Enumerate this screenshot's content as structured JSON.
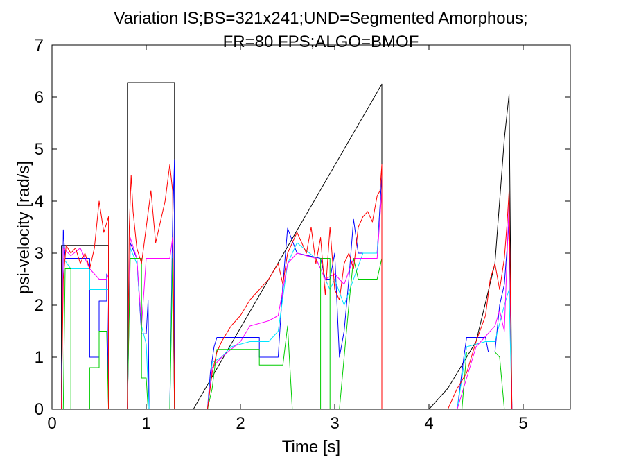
{
  "chart_data": {
    "type": "line",
    "title_line1": "Variation IS;BS=321x241;UND=Segmented Amorphous;",
    "title_line2": "FR=80 FPS;ALGO=BMOF",
    "xlabel": "Time [s]",
    "ylabel": "psi-velocity [rad/s]",
    "xlim": [
      0,
      5.5
    ],
    "ylim": [
      0,
      7
    ],
    "xticks": [
      0,
      1,
      2,
      3,
      4,
      5
    ],
    "yticks": [
      0,
      1,
      2,
      3,
      4,
      5,
      6,
      7
    ],
    "grid": false,
    "series": [
      {
        "color": "#000000",
        "points": [
          [
            0,
            0
          ],
          [
            0.1,
            0
          ],
          [
            0.1,
            3.15
          ],
          [
            0.6,
            3.15
          ],
          [
            0.6,
            0
          ],
          [
            0.8,
            0
          ],
          [
            0.8,
            6.28
          ],
          [
            1.3,
            6.28
          ],
          [
            1.3,
            0
          ],
          [
            1.5,
            0
          ],
          [
            3.5,
            6.25
          ],
          [
            3.5,
            0
          ],
          [
            4.0,
            0
          ],
          [
            4.2,
            0.4
          ],
          [
            4.5,
            1.3
          ],
          [
            4.7,
            2.8
          ],
          [
            4.8,
            5.2
          ],
          [
            4.85,
            6.05
          ],
          [
            4.88,
            0
          ],
          [
            5.5,
            0
          ]
        ]
      },
      {
        "color": "#0000ff",
        "points": [
          [
            0,
            0
          ],
          [
            0.1,
            0
          ],
          [
            0.12,
            3.45
          ],
          [
            0.14,
            2.9
          ],
          [
            0.4,
            2.9
          ],
          [
            0.4,
            1.0
          ],
          [
            0.5,
            1.0
          ],
          [
            0.5,
            2.08
          ],
          [
            0.58,
            2.08
          ],
          [
            0.58,
            2.6
          ],
          [
            0.6,
            0
          ],
          [
            0.8,
            0
          ],
          [
            0.83,
            3.2
          ],
          [
            0.9,
            2.9
          ],
          [
            0.95,
            1.45
          ],
          [
            1.0,
            1.45
          ],
          [
            1.02,
            2.1
          ],
          [
            1.03,
            0
          ],
          [
            1.25,
            0
          ],
          [
            1.28,
            3.6
          ],
          [
            1.3,
            4.8
          ],
          [
            1.3,
            0
          ],
          [
            1.65,
            0
          ],
          [
            1.68,
            0.7
          ],
          [
            1.72,
            1.2
          ],
          [
            1.75,
            1.38
          ],
          [
            2.2,
            1.38
          ],
          [
            2.2,
            1.0
          ],
          [
            2.4,
            1.0
          ],
          [
            2.45,
            2.4
          ],
          [
            2.5,
            3.48
          ],
          [
            2.6,
            3.0
          ],
          [
            2.85,
            2.9
          ],
          [
            2.9,
            2.5
          ],
          [
            2.95,
            2.5
          ],
          [
            3.0,
            3.0
          ],
          [
            3.05,
            1.0
          ],
          [
            3.1,
            1.5
          ],
          [
            3.15,
            2.5
          ],
          [
            3.2,
            3.65
          ],
          [
            3.25,
            3.0
          ],
          [
            3.45,
            3.0
          ],
          [
            3.5,
            4.5
          ],
          [
            3.5,
            0
          ],
          [
            4.3,
            0
          ],
          [
            4.37,
            1.0
          ],
          [
            4.4,
            1.38
          ],
          [
            4.6,
            1.38
          ],
          [
            4.63,
            1.1
          ],
          [
            4.7,
            1.1
          ],
          [
            4.75,
            2.0
          ],
          [
            4.8,
            2.4
          ],
          [
            4.85,
            3.6
          ],
          [
            4.88,
            0
          ],
          [
            5.5,
            0
          ]
        ]
      },
      {
        "color": "#00e5ff",
        "points": [
          [
            0,
            0
          ],
          [
            0.1,
            0
          ],
          [
            0.12,
            2.9
          ],
          [
            0.2,
            2.7
          ],
          [
            0.4,
            2.7
          ],
          [
            0.4,
            2.3
          ],
          [
            0.6,
            2.3
          ],
          [
            0.6,
            0
          ],
          [
            0.8,
            0
          ],
          [
            0.83,
            3.1
          ],
          [
            0.9,
            2.8
          ],
          [
            0.95,
            1.6
          ],
          [
            1.0,
            1.25
          ],
          [
            1.03,
            0
          ],
          [
            1.25,
            0
          ],
          [
            1.28,
            3.0
          ],
          [
            1.3,
            0
          ],
          [
            1.65,
            0
          ],
          [
            1.7,
            0.9
          ],
          [
            1.8,
            1.0
          ],
          [
            1.9,
            1.2
          ],
          [
            2.1,
            1.3
          ],
          [
            2.3,
            1.3
          ],
          [
            2.4,
            1.5
          ],
          [
            2.5,
            2.8
          ],
          [
            2.6,
            3.2
          ],
          [
            2.8,
            2.9
          ],
          [
            2.95,
            2.3
          ],
          [
            3.0,
            2.5
          ],
          [
            3.1,
            2.0
          ],
          [
            3.2,
            2.5
          ],
          [
            3.3,
            3.0
          ],
          [
            3.45,
            3.0
          ],
          [
            3.5,
            4.2
          ],
          [
            3.5,
            0
          ],
          [
            4.3,
            0
          ],
          [
            4.4,
            1.2
          ],
          [
            4.6,
            1.3
          ],
          [
            4.7,
            1.3
          ],
          [
            4.8,
            2.0
          ],
          [
            4.85,
            2.3
          ],
          [
            4.88,
            0
          ],
          [
            5.5,
            0
          ]
        ]
      },
      {
        "color": "#ff00ff",
        "points": [
          [
            0,
            0
          ],
          [
            0.1,
            0
          ],
          [
            0.12,
            3.1
          ],
          [
            0.2,
            2.95
          ],
          [
            0.3,
            3.1
          ],
          [
            0.4,
            2.7
          ],
          [
            0.5,
            2.5
          ],
          [
            0.58,
            2.5
          ],
          [
            0.6,
            2.6
          ],
          [
            0.6,
            0
          ],
          [
            0.8,
            0
          ],
          [
            0.83,
            3.3
          ],
          [
            0.9,
            2.9
          ],
          [
            0.95,
            1.6
          ],
          [
            1.0,
            2.9
          ],
          [
            1.25,
            2.9
          ],
          [
            1.28,
            3.3
          ],
          [
            1.3,
            0
          ],
          [
            1.65,
            0
          ],
          [
            1.7,
            0.8
          ],
          [
            1.8,
            1.0
          ],
          [
            2.0,
            1.3
          ],
          [
            2.1,
            1.6
          ],
          [
            2.3,
            1.7
          ],
          [
            2.4,
            1.8
          ],
          [
            2.5,
            2.8
          ],
          [
            2.6,
            3.0
          ],
          [
            2.8,
            2.9
          ],
          [
            2.9,
            2.5
          ],
          [
            3.0,
            2.6
          ],
          [
            3.1,
            2.4
          ],
          [
            3.2,
            2.9
          ],
          [
            3.45,
            2.9
          ],
          [
            3.5,
            4.2
          ],
          [
            3.5,
            0
          ],
          [
            4.3,
            0
          ],
          [
            4.4,
            0.6
          ],
          [
            4.5,
            1.2
          ],
          [
            4.6,
            1.4
          ],
          [
            4.7,
            1.6
          ],
          [
            4.75,
            1.9
          ],
          [
            4.8,
            1.5
          ],
          [
            4.85,
            4.0
          ],
          [
            4.88,
            0
          ],
          [
            5.5,
            0
          ]
        ]
      },
      {
        "color": "#00cc00",
        "points": [
          [
            0,
            0
          ],
          [
            0.12,
            0
          ],
          [
            0.14,
            2.7
          ],
          [
            0.2,
            2.7
          ],
          [
            0.2,
            0
          ],
          [
            0.4,
            0
          ],
          [
            0.4,
            0.8
          ],
          [
            0.5,
            0.8
          ],
          [
            0.5,
            1.5
          ],
          [
            0.58,
            1.5
          ],
          [
            0.6,
            0
          ],
          [
            0.8,
            0
          ],
          [
            0.83,
            2.9
          ],
          [
            0.95,
            2.9
          ],
          [
            0.95,
            0.6
          ],
          [
            1.0,
            0.6
          ],
          [
            1.02,
            0
          ],
          [
            1.25,
            0
          ],
          [
            1.28,
            2.9
          ],
          [
            1.3,
            0
          ],
          [
            1.65,
            0
          ],
          [
            1.7,
            0.4
          ],
          [
            1.75,
            1.15
          ],
          [
            2.2,
            1.15
          ],
          [
            2.2,
            0.85
          ],
          [
            2.45,
            0.85
          ],
          [
            2.5,
            1.6
          ],
          [
            2.55,
            0
          ],
          [
            2.85,
            0
          ],
          [
            2.85,
            2.9
          ],
          [
            2.95,
            2.9
          ],
          [
            2.95,
            0
          ],
          [
            3.05,
            0
          ],
          [
            3.15,
            2.0
          ],
          [
            3.2,
            2.9
          ],
          [
            3.25,
            2.5
          ],
          [
            3.45,
            2.5
          ],
          [
            3.5,
            2.9
          ],
          [
            3.5,
            0
          ],
          [
            4.35,
            0
          ],
          [
            4.4,
            1.1
          ],
          [
            4.6,
            1.1
          ],
          [
            4.7,
            1.1
          ],
          [
            4.75,
            1.0
          ],
          [
            4.8,
            0
          ],
          [
            5.5,
            0
          ]
        ]
      },
      {
        "color": "#ff0000",
        "points": [
          [
            0,
            0
          ],
          [
            0.1,
            0
          ],
          [
            0.12,
            2.5
          ],
          [
            0.15,
            3.15
          ],
          [
            0.2,
            3.0
          ],
          [
            0.25,
            3.1
          ],
          [
            0.3,
            2.8
          ],
          [
            0.35,
            3.0
          ],
          [
            0.4,
            2.7
          ],
          [
            0.45,
            3.1
          ],
          [
            0.5,
            4.0
          ],
          [
            0.55,
            3.4
          ],
          [
            0.6,
            3.7
          ],
          [
            0.6,
            0
          ],
          [
            0.8,
            0
          ],
          [
            0.82,
            3.5
          ],
          [
            0.84,
            4.5
          ],
          [
            0.86,
            3.8
          ],
          [
            0.9,
            3.1
          ],
          [
            0.95,
            2.8
          ],
          [
            1.0,
            3.5
          ],
          [
            1.05,
            4.2
          ],
          [
            1.1,
            3.2
          ],
          [
            1.15,
            3.6
          ],
          [
            1.2,
            4.0
          ],
          [
            1.25,
            4.7
          ],
          [
            1.28,
            4.2
          ],
          [
            1.3,
            0
          ],
          [
            1.65,
            0
          ],
          [
            1.7,
            0.7
          ],
          [
            1.75,
            1.1
          ],
          [
            1.8,
            1.3
          ],
          [
            1.9,
            1.6
          ],
          [
            2.0,
            1.8
          ],
          [
            2.1,
            2.1
          ],
          [
            2.2,
            2.3
          ],
          [
            2.3,
            2.5
          ],
          [
            2.4,
            2.8
          ],
          [
            2.45,
            2.4
          ],
          [
            2.5,
            3.0
          ],
          [
            2.55,
            3.2
          ],
          [
            2.6,
            3.4
          ],
          [
            2.7,
            3.0
          ],
          [
            2.75,
            3.5
          ],
          [
            2.8,
            2.8
          ],
          [
            2.85,
            3.3
          ],
          [
            2.9,
            2.2
          ],
          [
            2.95,
            3.5
          ],
          [
            3.0,
            2.3
          ],
          [
            3.05,
            2.1
          ],
          [
            3.1,
            2.8
          ],
          [
            3.15,
            3.0
          ],
          [
            3.2,
            2.7
          ],
          [
            3.25,
            3.5
          ],
          [
            3.3,
            3.7
          ],
          [
            3.35,
            3.8
          ],
          [
            3.4,
            3.6
          ],
          [
            3.45,
            4.1
          ],
          [
            3.48,
            4.2
          ],
          [
            3.5,
            4.7
          ],
          [
            3.5,
            0
          ],
          [
            4.2,
            0
          ],
          [
            4.3,
            0.4
          ],
          [
            4.4,
            0.7
          ],
          [
            4.5,
            1.3
          ],
          [
            4.6,
            1.8
          ],
          [
            4.65,
            2.5
          ],
          [
            4.7,
            2.8
          ],
          [
            4.75,
            2.3
          ],
          [
            4.8,
            2.9
          ],
          [
            4.83,
            3.6
          ],
          [
            4.85,
            4.2
          ],
          [
            4.88,
            0
          ],
          [
            5.5,
            0
          ]
        ]
      }
    ]
  }
}
